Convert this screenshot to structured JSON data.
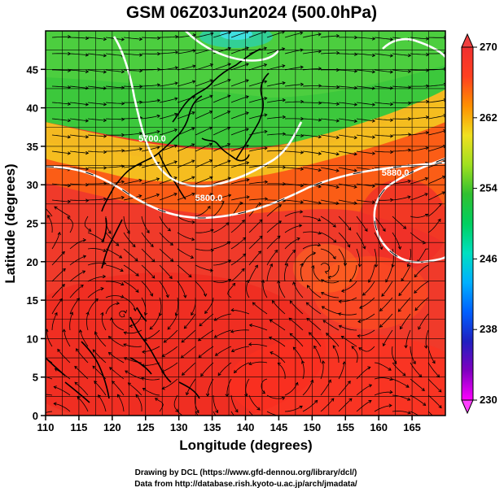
{
  "map": {
    "title": "GSM 06Z03Jun2024 (500.0hPa)",
    "xlabel": "Longitude (degrees)",
    "ylabel": "Latitude (degrees)",
    "lon_range": [
      110,
      170
    ],
    "lat_range": [
      0,
      50
    ],
    "xticks": [
      "110",
      "115",
      "120",
      "125",
      "130",
      "135",
      "140",
      "145",
      "150",
      "155",
      "160",
      "165"
    ],
    "yticks": [
      "0",
      "5",
      "10",
      "15",
      "20",
      "25",
      "30",
      "35",
      "40",
      "45"
    ],
    "colorbar": {
      "ticks": [
        "230",
        "238",
        "246",
        "254",
        "262",
        "270"
      ],
      "range": [
        230,
        270
      ],
      "stops": [
        "#ff00ff",
        "#8000c0",
        "#2020c0",
        "#0060ff",
        "#00b0ff",
        "#00e0c0",
        "#00d060",
        "#30c030",
        "#a0e020",
        "#f0e020",
        "#ff9000",
        "#ff4020",
        "#f03030"
      ]
    },
    "contour_labels": [
      {
        "text": "5800.0",
        "lon": 134.5,
        "lat": 27.9
      },
      {
        "text": "5880.0",
        "lon": 162.5,
        "lat": 31.2
      },
      {
        "text": "5700.0",
        "lon": 126,
        "lat": 35.6
      }
    ],
    "credits": {
      "line1": "Drawing by DCL (https://www.gfd-dennou.org/library/dcl/)",
      "line2": "Data from http://database.rish.kyoto-u.ac.jp/arch/jmadata/"
    }
  }
}
